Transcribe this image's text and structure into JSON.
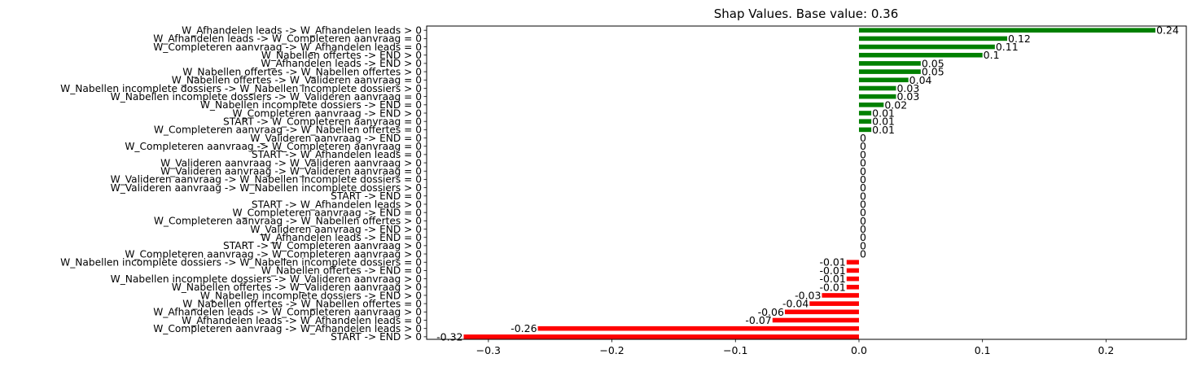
{
  "chart_data": {
    "type": "bar",
    "orientation": "horizontal",
    "title": "Shap Values. Base value: 0.36",
    "xlabel": "",
    "ylabel": "",
    "xlim": [
      -0.35,
      0.265
    ],
    "xticks": [
      -0.3,
      -0.2,
      -0.1,
      0.0,
      0.1,
      0.2
    ],
    "xtick_labels": [
      "−0.3",
      "−0.2",
      "−0.1",
      "0.0",
      "0.1",
      "0.2"
    ],
    "grid": false,
    "colors": {
      "positive": "#008000",
      "negative": "#ff0000"
    },
    "categories": [
      "W_Afhandelen leads -> W_Afhandelen leads > 0",
      "W_Afhandelen leads -> W_Completeren aanvraag = 0",
      "W_Completeren aanvraag -> W_Afhandelen leads = 0",
      "W_Nabellen offertes -> END > 0",
      "W_Afhandelen leads -> END > 0",
      "W_Nabellen offertes -> W_Nabellen offertes > 0",
      "W_Nabellen offertes -> W_Valideren aanvraag = 0",
      "W_Nabellen incomplete dossiers -> W_Nabellen incomplete dossiers > 0",
      "W_Nabellen incomplete dossiers -> W_Valideren aanvraag = 0",
      "W_Nabellen incomplete dossiers -> END = 0",
      "W_Completeren aanvraag -> END > 0",
      "START -> W_Completeren aanvraag = 0",
      "W_Completeren aanvraag -> W_Nabellen offertes = 0",
      "W_Valideren aanvraag -> END = 0",
      "W_Completeren aanvraag -> W_Completeren aanvraag = 0",
      "START -> W_Afhandelen leads = 0",
      "W_Valideren aanvraag -> W_Valideren aanvraag > 0",
      "W_Valideren aanvraag -> W_Valideren aanvraag = 0",
      "W_Valideren aanvraag -> W_Nabellen incomplete dossiers = 0",
      "W_Valideren aanvraag -> W_Nabellen incomplete dossiers > 0",
      "START -> END = 0",
      "START -> W_Afhandelen leads > 0",
      "W_Completeren aanvraag -> END = 0",
      "W_Completeren aanvraag -> W_Nabellen offertes > 0",
      "W_Valideren aanvraag -> END > 0",
      "W_Afhandelen leads -> END = 0",
      "START -> W_Completeren aanvraag > 0",
      "W_Completeren aanvraag -> W_Completeren aanvraag > 0",
      "W_Nabellen incomplete dossiers -> W_Nabellen incomplete dossiers = 0",
      "W_Nabellen offertes -> END = 0",
      "W_Nabellen incomplete dossiers -> W_Valideren aanvraag > 0",
      "W_Nabellen offertes -> W_Valideren aanvraag > 0",
      "W_Nabellen incomplete dossiers -> END > 0",
      "W_Nabellen offertes -> W_Nabellen offertes = 0",
      "W_Afhandelen leads -> W_Completeren aanvraag > 0",
      "W_Afhandelen leads -> W_Afhandelen leads = 0",
      "W_Completeren aanvraag -> W_Afhandelen leads > 0",
      "START -> END > 0"
    ],
    "values": [
      0.24,
      0.12,
      0.11,
      0.1,
      0.05,
      0.05,
      0.04,
      0.03,
      0.03,
      0.02,
      0.01,
      0.01,
      0.01,
      0,
      0,
      0,
      0,
      0,
      0,
      0,
      0,
      0,
      0,
      0,
      0,
      0,
      0,
      0,
      -0.01,
      -0.01,
      -0.01,
      -0.01,
      -0.03,
      -0.04,
      -0.06,
      -0.07,
      -0.26,
      -0.32
    ],
    "value_labels": [
      "0.24",
      "0.12",
      "0.11",
      "0.1",
      "0.05",
      "0.05",
      "0.04",
      "0.03",
      "0.03",
      "0.02",
      "0.01",
      "0.01",
      "0.01",
      "0",
      "0",
      "0",
      "0",
      "0",
      "0",
      "0",
      "0",
      "0",
      "0",
      "0",
      "0",
      "0",
      "0",
      "0",
      "-0.01",
      "-0.01",
      "-0.01",
      "-0.01",
      "-0.03",
      "-0.04",
      "-0.06",
      "-0.07",
      "-0.26",
      "-0.32"
    ]
  }
}
